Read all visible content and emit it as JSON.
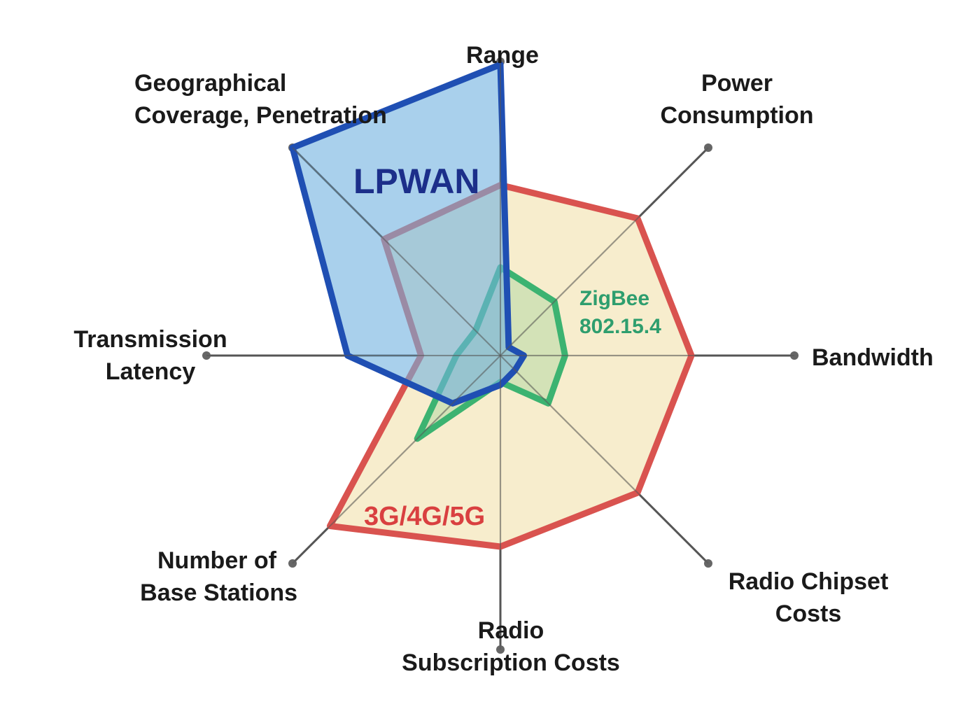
{
  "chart_data": {
    "type": "radar",
    "title": "",
    "axes": [
      {
        "name": "Range",
        "lines": [
          "Range"
        ]
      },
      {
        "name": "Power Consumption",
        "lines": [
          "Power",
          "Consumption"
        ]
      },
      {
        "name": "Bandwidth",
        "lines": [
          "Bandwidth"
        ]
      },
      {
        "name": "Radio Chipset Costs",
        "lines": [
          "Radio Chipset",
          "Costs"
        ]
      },
      {
        "name": "Radio Subscription Costs",
        "lines": [
          "Radio",
          "Subscription Costs"
        ]
      },
      {
        "name": "Number of Base Stations",
        "lines": [
          "Number of",
          "Base Stations"
        ]
      },
      {
        "name": "Transmission Latency",
        "lines": [
          "Transmission",
          "Latency"
        ]
      },
      {
        "name": "Geographical Coverage, Penetration",
        "lines": [
          "Geographical",
          "Coverage, Penetration"
        ]
      }
    ],
    "range": [
      0,
      1
    ],
    "series": [
      {
        "name": "3G/4G/5G",
        "label_lines": [
          "3G/4G/5G"
        ],
        "values": [
          0.58,
          0.66,
          0.65,
          0.66,
          0.65,
          0.82,
          0.27,
          0.56
        ],
        "stroke": "#d9534f",
        "fill": "#f6ebc8",
        "fill_opacity": 0.9,
        "label_color": "#d94040"
      },
      {
        "name": "ZigBee 802.15.4",
        "label_lines": [
          "ZigBee",
          "802.15.4"
        ],
        "values": [
          0.3,
          0.26,
          0.22,
          0.23,
          0.09,
          0.4,
          0.15,
          0.12
        ],
        "stroke": "#3cb371",
        "fill": "#8fcf8f",
        "fill_opacity": 0.35,
        "label_color": "#2e9e6e"
      },
      {
        "name": "LPWAN",
        "label_lines": [
          "LPWAN"
        ],
        "values": [
          0.99,
          0.04,
          0.08,
          0.07,
          0.1,
          0.23,
          0.52,
          1.0
        ],
        "stroke": "#1f4fb3",
        "fill": "#6fb0e0",
        "fill_opacity": 0.6,
        "label_color": "#1c2f8a"
      }
    ]
  }
}
